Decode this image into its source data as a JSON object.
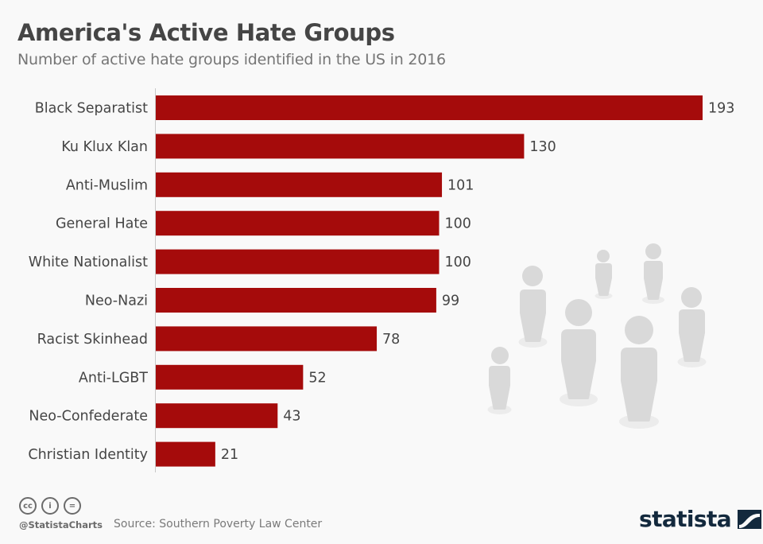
{
  "header": {
    "title": "America's Active Hate Groups",
    "subtitle": "Number of active hate groups identified in the US in 2016"
  },
  "chart_data": {
    "type": "bar",
    "orientation": "horizontal",
    "title": "America's Active Hate Groups",
    "subtitle": "Number of active hate groups identified in the US in 2016",
    "categories": [
      "Black Separatist",
      "Ku Klux Klan",
      "Anti-Muslim",
      "General Hate",
      "White Nationalist",
      "Neo-Nazi",
      "Racist Skinhead",
      "Anti-LGBT",
      "Neo-Confederate",
      "Christian Identity"
    ],
    "values": [
      193,
      130,
      101,
      100,
      100,
      99,
      78,
      52,
      43,
      21
    ],
    "xlabel": "",
    "ylabel": "",
    "xlim": [
      0,
      193
    ],
    "grid": false,
    "data_labels": true,
    "bar_color": "#a50b0b"
  },
  "colors": {
    "bar": "#a50b0b",
    "text": "#454545",
    "figure": "#d9d9d9",
    "figure_shadow": "#ececec",
    "brand": "#13293d"
  },
  "footer": {
    "handle": "@StatistaCharts",
    "source": "Source: Southern Poverty Law Center",
    "cc_icons": [
      "cc-icon",
      "by-icon",
      "nd-icon"
    ],
    "cc_labels": [
      "cc",
      "i",
      "="
    ],
    "brand": "statista"
  }
}
